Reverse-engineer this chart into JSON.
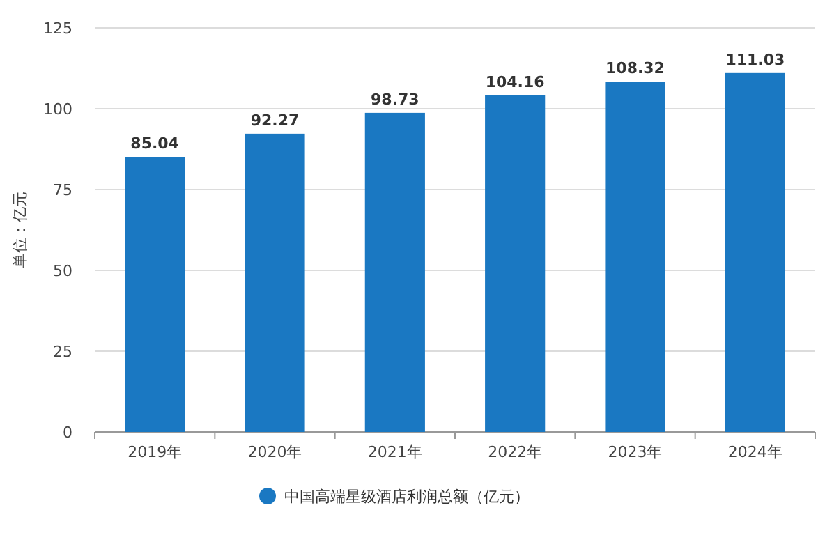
{
  "chart_data": {
    "type": "bar",
    "ylabel": "单位：亿元",
    "categories": [
      "2019年",
      "2020年",
      "2021年",
      "2022年",
      "2023年",
      "2024年"
    ],
    "series": [
      {
        "name": "中国高端星级酒店利润总额（亿元）",
        "color": "#1a78c2",
        "values": [
          85.04,
          92.27,
          98.73,
          104.16,
          108.32,
          111.03
        ]
      }
    ],
    "ylim": [
      0,
      125
    ],
    "yticks": [
      0,
      25,
      50,
      75,
      100,
      125
    ],
    "grid": "y",
    "data_labels": true,
    "legend": "bottom"
  }
}
